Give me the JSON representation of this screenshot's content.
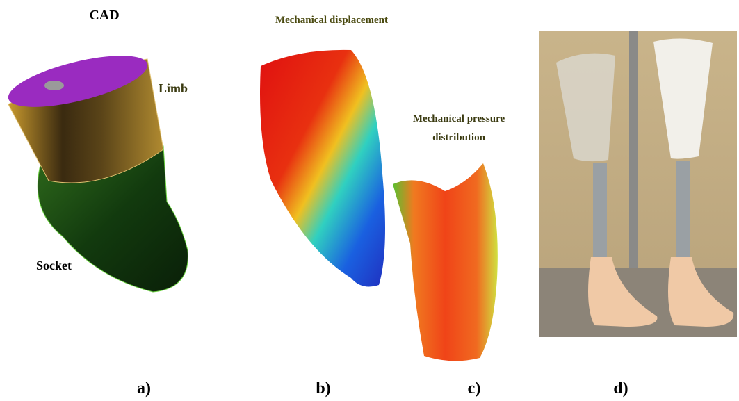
{
  "panels": [
    {
      "label": "a)",
      "title": "CAD",
      "annotations": [
        "Limb",
        "Socket"
      ]
    },
    {
      "label": "b)",
      "title": "Mechanical displacement"
    },
    {
      "label": "c)",
      "title": [
        "Mechanical pressure",
        "distribution"
      ]
    },
    {
      "label": "d)"
    }
  ]
}
